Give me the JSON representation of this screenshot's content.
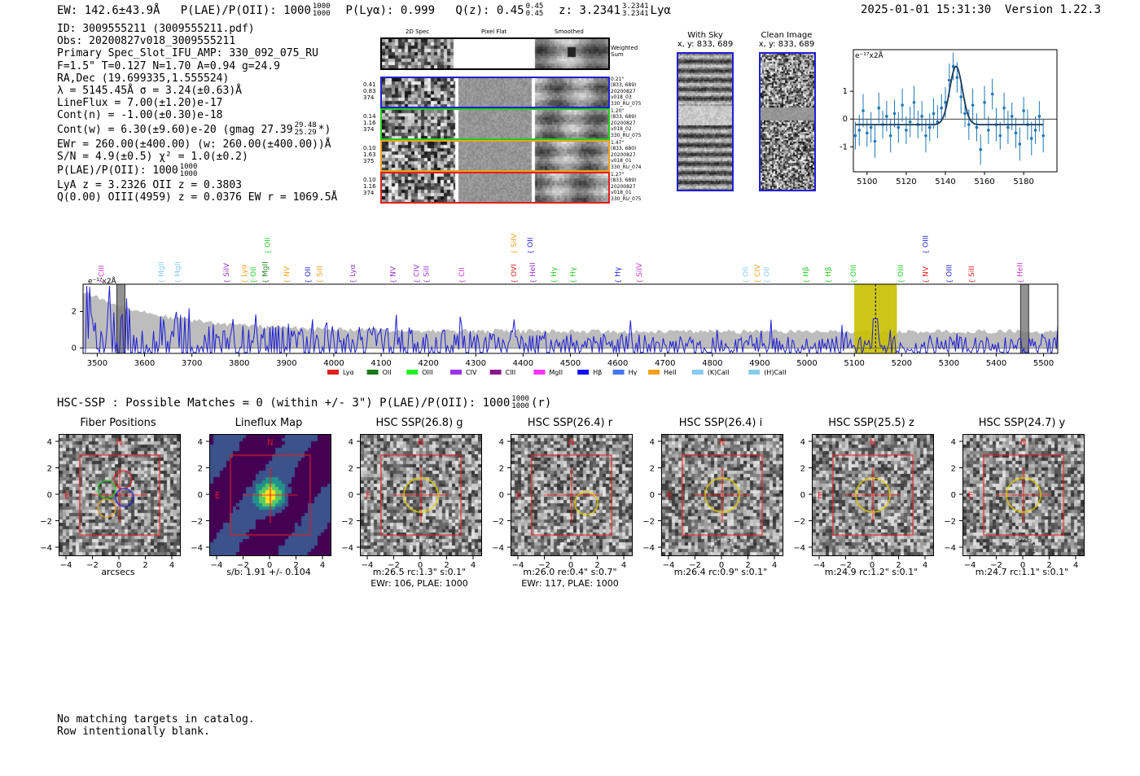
{
  "header": {
    "ew": "EW: 142.6±43.9Å",
    "plae_prefix": "P(LAE)/P(OII): 1000",
    "plae_hi": "1000",
    "plae_lo": "1000",
    "plya": "P(Lyα): 0.999",
    "qz_prefix": "Q(z): 0.45",
    "qz_hi": "0.45",
    "qz_lo": "0.45",
    "z_prefix": "z: 3.2341",
    "z_hi": "3.2341",
    "z_lo": "3.2341",
    "z_line": "Lyα",
    "timestamp": "2025-01-01 15:31:30",
    "version": "Version 1.22.3"
  },
  "info": {
    "id": "ID: 3009555211 (3009555211.pdf)",
    "obs": "Obs: 20200827v018_3009555211",
    "primary": "Primary Spec_Slot_IFU_AMP: 330_092_075_RU",
    "fit": "F=1.5\"  T=0.127  N=1.70  A=0.94  g=24.9",
    "radec": "RA,Dec (19.699335,1.555524)",
    "lambda": "λ = 5145.45Å  σ = 3.24(±0.63)Å",
    "lineflux": "LineFlux = 7.00(±1.20)e-17",
    "contn": "Cont(n) = -1.00(±0.30)e-18",
    "contw_prefix": "Cont(w) = 6.30(±9.60)e-20 (gmag 27.39",
    "contw_hi": "29.48",
    "contw_lo": "25.29",
    "contw_suffix": "*)",
    "ewr": "EWr = 260.00(±400.00) (w: 260.00(±400.00))Å",
    "sn": "S/N = 4.9(±0.5)  χ² = 1.0(±0.2)",
    "plae_prefix": "P(LAE)/P(OII): 1000",
    "plae_hi": "1000",
    "plae_lo": "1000",
    "lyaz": "LyA z = 3.2326  OII z = 0.3803",
    "qline": "Q(0.00) OIII(4959) z = 0.0376  EW r = 1069.5Å"
  },
  "cutouts": {
    "col_2d": "2D Spec",
    "col_flat": "Pixel Flat",
    "col_smooth": "Smoothed",
    "weighted_label": "Weighted Sum",
    "rows": [
      {
        "w1": "0.41",
        "w2": "0.83",
        "w3": "374",
        "d1": "0.21\"",
        "d2": "(833, 689)",
        "d3": "20200827",
        "d4": "v018_03",
        "d5": "330_RU_075",
        "color": "#1f1fd6"
      },
      {
        "w1": "0.14",
        "w2": "1.16",
        "w3": "374",
        "d1": "1.20\"",
        "d2": "(833, 689)",
        "d3": "20200827",
        "d4": "v018_02",
        "d5": "330_RU_075",
        "color": "#22cc22"
      },
      {
        "w1": "0.10",
        "w2": "1.63",
        "w3": "375",
        "d1": "1.47\"",
        "d2": "(833, 680)",
        "d3": "20200827",
        "d4": "v018_01",
        "d5": "330_RU_074",
        "color": "#f0a020"
      },
      {
        "w1": "0.10",
        "w2": "1.16",
        "w3": "374",
        "d1": "1.27\"",
        "d2": "(833, 689)",
        "d3": "20200827",
        "d4": "v018_01",
        "d5": "330_RU_075",
        "color": "#e02020"
      }
    ]
  },
  "sky": {
    "with_sky_title": "With Sky",
    "with_sky_coords": "x, y: 833, 689",
    "clean_title": "Clean Image",
    "clean_coords": "x, y: 833, 689"
  },
  "chart_data": [
    {
      "type": "scatter",
      "title": "",
      "ylabel_note": "e⁻¹⁷x2Å",
      "xlim": [
        5093,
        5197
      ],
      "ylim": [
        -1.9,
        2.5
      ],
      "xticks": [
        5100,
        5120,
        5140,
        5160,
        5180
      ],
      "yticks": [
        -1,
        0,
        1
      ],
      "x": [
        5094,
        5096,
        5098,
        5100,
        5102,
        5104,
        5106,
        5108,
        5110,
        5112,
        5114,
        5116,
        5118,
        5120,
        5122,
        5124,
        5126,
        5128,
        5130,
        5132,
        5134,
        5136,
        5138,
        5140,
        5142,
        5144,
        5146,
        5148,
        5150,
        5152,
        5154,
        5156,
        5158,
        5160,
        5162,
        5164,
        5166,
        5168,
        5170,
        5172,
        5174,
        5176,
        5178,
        5180,
        5182,
        5184,
        5186,
        5188,
        5190
      ],
      "y": [
        -0.6,
        -0.4,
        0.3,
        -0.5,
        -0.3,
        -0.8,
        0.4,
        -0.2,
        0.1,
        -0.6,
        0.2,
        -0.3,
        0.5,
        -0.4,
        -0.1,
        0.6,
        -0.2,
        0.1,
        -0.6,
        -0.3,
        0.2,
        -0.1,
        0.4,
        0.6,
        1.4,
        1.9,
        1.5,
        0.8,
        0.2,
        -0.2,
        0.5,
        -0.3,
        -1.1,
        0.6,
        -0.4,
        0.9,
        -0.2,
        -0.6,
        0.4,
        -0.3,
        0.1,
        -0.5,
        -0.9,
        0.3,
        -0.2,
        -0.7,
        -0.4,
        0.1,
        -0.6
      ],
      "err": [
        0.5,
        0.55,
        0.6,
        0.5,
        0.55,
        0.6,
        0.55,
        0.5,
        0.55,
        0.6,
        0.5,
        0.55,
        0.6,
        0.5,
        0.55,
        0.6,
        0.5,
        0.55,
        0.6,
        0.5,
        0.55,
        0.6,
        0.5,
        0.55,
        0.6,
        0.5,
        0.55,
        0.6,
        0.5,
        0.55,
        0.6,
        0.5,
        0.55,
        0.6,
        0.5,
        0.55,
        0.6,
        0.5,
        0.55,
        0.6,
        0.5,
        0.55,
        0.6,
        0.5,
        0.55,
        0.6,
        0.5,
        0.55,
        0.6
      ],
      "fit": {
        "center": 5145.45,
        "sigma": 3.24,
        "amp": 1.5,
        "base": -0.2
      }
    },
    {
      "type": "line",
      "ylabel_note": "e⁻¹⁷x2Å",
      "xlim": [
        3470,
        5530
      ],
      "ylim": [
        -0.3,
        3.5
      ],
      "xticks": [
        3500,
        3600,
        3700,
        3800,
        3900,
        4000,
        4100,
        4200,
        4300,
        4400,
        4500,
        4600,
        4700,
        4800,
        4900,
        5000,
        5100,
        5200,
        5300,
        5400,
        5500
      ],
      "yticks": [
        0,
        2
      ],
      "highlight": [
        5100,
        5190
      ],
      "markers": [
        3550,
        5460
      ],
      "line_labels": [
        {
          "name": "CIII",
          "x": 3509,
          "color": "#cc33cc",
          "row": 1
        },
        {
          "name": "MgII",
          "x": 3635,
          "color": "#88ccee",
          "row": 1
        },
        {
          "name": "MgII",
          "x": 3670,
          "color": "#88ccee",
          "row": 1
        },
        {
          "name": "SiIV",
          "x": 3773,
          "color": "#9933cc",
          "row": 1
        },
        {
          "name": "Lyα",
          "x": 3810,
          "color": "#f0a020",
          "row": 1
        },
        {
          "name": "OII",
          "x": 3830,
          "color": "#22cc22",
          "row": 1
        },
        {
          "name": "MgII",
          "x": 3855,
          "color": "#228822",
          "row": 1
        },
        {
          "name": "OII",
          "x": 3860,
          "color": "#22cc22",
          "row": 0
        },
        {
          "name": "NV",
          "x": 3900,
          "color": "#f0a020",
          "row": 1
        },
        {
          "name": "OII",
          "x": 3945,
          "color": "#1f1fd6",
          "row": 1
        },
        {
          "name": "SiII",
          "x": 3970,
          "color": "#f0a020",
          "row": 1
        },
        {
          "name": "Lyα",
          "x": 4040,
          "color": "#9933cc",
          "row": 1
        },
        {
          "name": "NV",
          "x": 4125,
          "color": "#9933cc",
          "row": 1
        },
        {
          "name": "CIV",
          "x": 4175,
          "color": "#9933cc",
          "row": 1
        },
        {
          "name": "SiII",
          "x": 4195,
          "color": "#9933cc",
          "row": 1
        },
        {
          "name": "CII",
          "x": 4270,
          "color": "#cc33cc",
          "row": 1
        },
        {
          "name": "OVI",
          "x": 4380,
          "color": "#e02020",
          "row": 1
        },
        {
          "name": "SiIV",
          "x": 4380,
          "color": "#f0a020",
          "row": 0
        },
        {
          "name": "OII",
          "x": 4415,
          "color": "#1f1fd6",
          "row": 0
        },
        {
          "name": "HeII",
          "x": 4420,
          "color": "#9933cc",
          "row": 1
        },
        {
          "name": "Hγ",
          "x": 4465,
          "color": "#22cc22",
          "row": 1
        },
        {
          "name": "Hγ",
          "x": 4505,
          "color": "#22cc22",
          "row": 1
        },
        {
          "name": "Hγ",
          "x": 4600,
          "color": "#1f1fd6",
          "row": 1
        },
        {
          "name": "SiIV",
          "x": 4645,
          "color": "#cc33cc",
          "row": 1
        },
        {
          "name": "OII",
          "x": 4870,
          "color": "#88ccee",
          "row": 1
        },
        {
          "name": "CIV",
          "x": 4895,
          "color": "#f0a020",
          "row": 1
        },
        {
          "name": "OII",
          "x": 4915,
          "color": "#88ccee",
          "row": 1
        },
        {
          "name": "Hβ",
          "x": 4997,
          "color": "#22cc22",
          "row": 1
        },
        {
          "name": "Hβ",
          "x": 5045,
          "color": "#22cc22",
          "row": 1
        },
        {
          "name": "OIII",
          "x": 5098,
          "color": "#22cc22",
          "row": 1
        },
        {
          "name": "OIII",
          "x": 5198,
          "color": "#22cc22",
          "row": 1
        },
        {
          "name": "NV",
          "x": 5250,
          "color": "#e02020",
          "row": 1
        },
        {
          "name": "OIII",
          "x": 5250,
          "color": "#1f1fd6",
          "row": 0
        },
        {
          "name": "OIII",
          "x": 5300,
          "color": "#1f1fd6",
          "row": 1
        },
        {
          "name": "SiII",
          "x": 5348,
          "color": "#e02020",
          "row": 1
        },
        {
          "name": "HeII",
          "x": 5450,
          "color": "#cc33cc",
          "row": 1
        }
      ],
      "legend": [
        {
          "name": "Lyα",
          "color": "#e02020"
        },
        {
          "name": "OII",
          "color": "#1a7a1a"
        },
        {
          "name": "OIII",
          "color": "#22ee22"
        },
        {
          "name": "CIV",
          "color": "#9933ee"
        },
        {
          "name": "CIII",
          "color": "#8a1a8a"
        },
        {
          "name": "MgII",
          "color": "#ff33ff"
        },
        {
          "name": "Hβ",
          "color": "#1111ee"
        },
        {
          "name": "Hγ",
          "color": "#4477ee"
        },
        {
          "name": "HeII",
          "color": "#f0a020"
        },
        {
          "name": "(K)CaII",
          "color": "#88ccee"
        },
        {
          "name": "(H)CaII",
          "color": "#88ccee"
        }
      ]
    }
  ],
  "hsc": {
    "header_prefix": "HSC-SSP : Possible Matches = 0 (within +/- 3\")  P(LAE)/P(OII): 1000",
    "header_hi": "1000",
    "header_lo": "1000",
    "header_suffix": "(r)",
    "panels": [
      {
        "title": "Fiber Positions",
        "cap1": "arcsecs",
        "cap2": "",
        "kind": "fiber"
      },
      {
        "title": "Lineflux Map",
        "cap1": "s/b: 1.91 +/- 0.104",
        "cap2": "",
        "kind": "flux"
      },
      {
        "title": "HSC SSP(26.8) g",
        "cap1": "m:26.5 rc:1.3\"  s:0.1\"",
        "cap2": "EWr: 106, PLAE: 1000",
        "kind": "img"
      },
      {
        "title": "HSC SSP(26.4) r",
        "cap1": "m:26.0  re:0.4\"  s:0.7\"",
        "cap2": "EWr: 117, PLAE: 1000",
        "kind": "img"
      },
      {
        "title": "HSC SSP(26.4) i",
        "cap1": "m:26.4 rc:0.9\"  s:0.1\"",
        "cap2": "",
        "kind": "img"
      },
      {
        "title": "HSC SSP(25.5) z",
        "cap1": "m:24.9 rc:1.2\"  s:0.1\"",
        "cap2": "",
        "kind": "img"
      },
      {
        "title": "HSC SSP(24.7) y",
        "cap1": "m:24.7 rc:1.1\"  s:0.1\"",
        "cap2": "",
        "kind": "img"
      }
    ],
    "compass_n": "N",
    "compass_e": "E",
    "ticks": [
      4,
      2,
      0,
      -2,
      -4
    ],
    "xticks": [
      -4,
      -2,
      0,
      2,
      4
    ]
  },
  "footer": {
    "line1": "No matching targets in catalog.",
    "line2": "Row intentionally blank."
  }
}
